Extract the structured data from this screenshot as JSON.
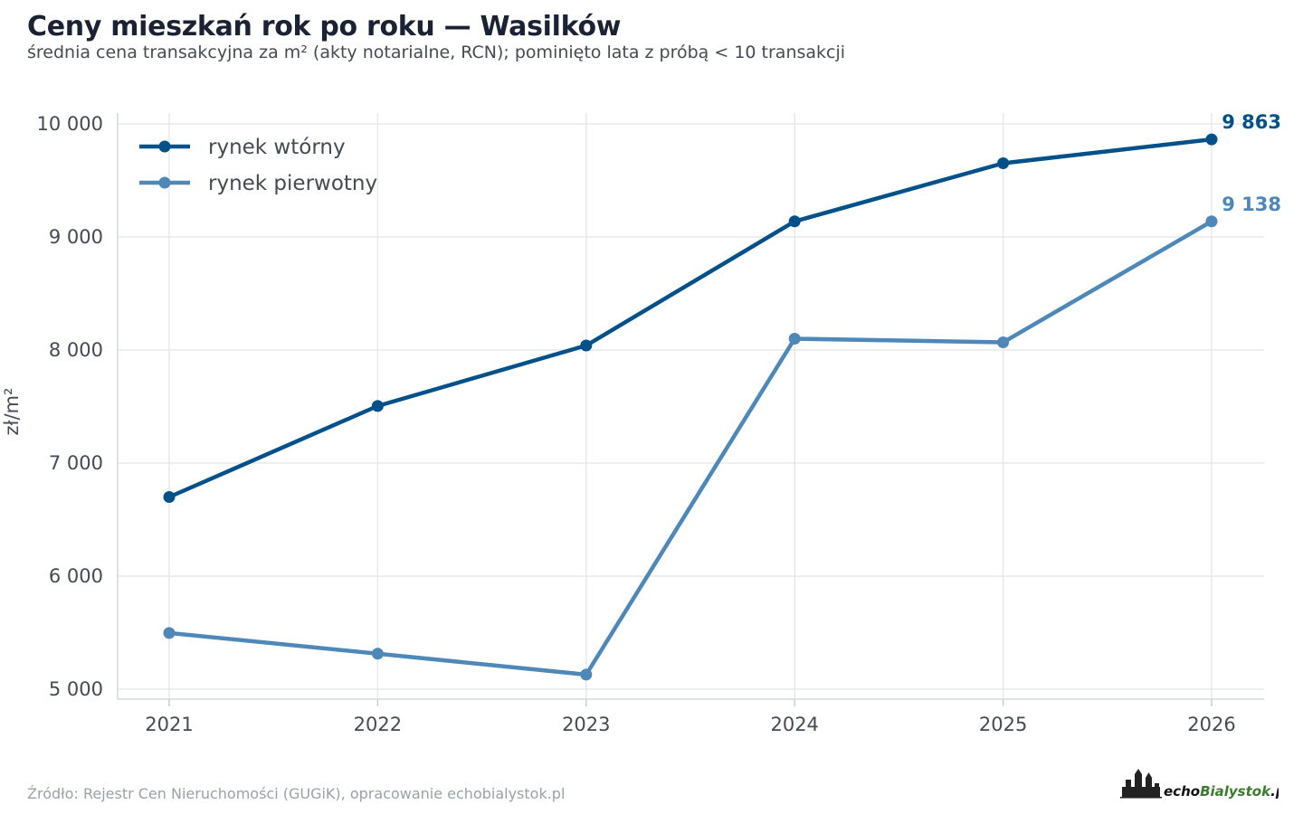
{
  "title": "Ceny mieszkań rok po roku — Wasilków",
  "subtitle": "średnia cena transakcyjna za m² (akty notarialne, RCN); pominięto lata z próbą < 10 transakcji",
  "source": "Źródło: Rejestr Cen Nieruchomości (GUGiK), opracowanie echobialystok.pl",
  "logo": {
    "text_echo": "echo",
    "text_bialystok": "Bialystok",
    "text_pl": ".pl"
  },
  "colors": {
    "secondary": "#00508a",
    "primary": "#4e88b8",
    "grid": "#e6e8eb"
  },
  "chart_data": {
    "type": "line",
    "categories": [
      "2021",
      "2022",
      "2023",
      "2024",
      "2025",
      "2026"
    ],
    "ylabel": "zł/m²",
    "xlabel": "",
    "ylim": [
      4900,
      10100
    ],
    "yticks": [
      5000,
      6000,
      7000,
      8000,
      9000,
      10000
    ],
    "ytick_labels": [
      "5 000",
      "6 000",
      "7 000",
      "8 000",
      "9 000",
      "10 000"
    ],
    "grid": true,
    "legend_position": "top-left",
    "series": [
      {
        "name": "rynek wtórny",
        "color": "#00508a",
        "values": [
          6700,
          7505,
          8040,
          9138,
          9652,
          9863
        ],
        "end_label": "9 863"
      },
      {
        "name": "rynek pierwotny",
        "color": "#4e88b8",
        "values": [
          5497,
          5314,
          5129,
          8100,
          8068,
          9138
        ],
        "end_label": "9 138"
      }
    ]
  }
}
